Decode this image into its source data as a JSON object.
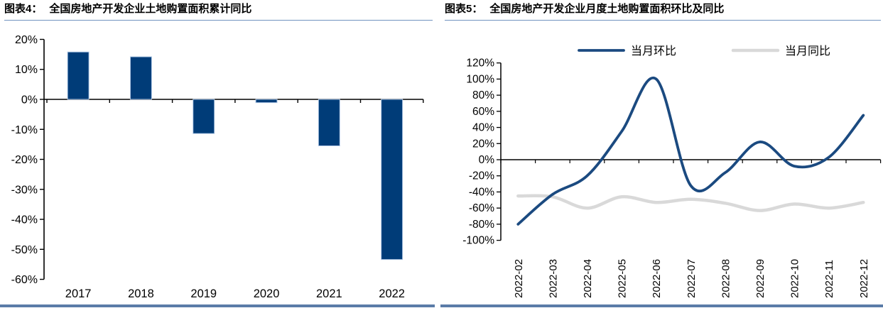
{
  "panels": [
    {
      "figure_label": "图表4：",
      "title": "全国房地产开发企业土地购置面积累计同比"
    },
    {
      "figure_label": "图表5：",
      "title": "全国房地产开发企业月度土地购置面积环比及同比"
    }
  ],
  "chart_data": [
    {
      "type": "bar",
      "title": "全国房地产开发企业土地购置面积累计同比",
      "categories": [
        "2017",
        "2018",
        "2019",
        "2020",
        "2021",
        "2022"
      ],
      "values": [
        15.8,
        14.2,
        -11.4,
        -1.1,
        -15.5,
        -53.4
      ],
      "unit": "%",
      "xlabel": "",
      "ylabel": "",
      "ylim": [
        -60,
        20
      ],
      "ytick_step": 10,
      "ytick_labels": [
        "20%",
        "10%",
        "0%",
        "-10%",
        "-20%",
        "-30%",
        "-40%",
        "-50%",
        "-60%"
      ],
      "grid": false,
      "bar_color": "#003c78",
      "bar_edge_color": "#b3c9e6",
      "axis_color": "#000000"
    },
    {
      "type": "line",
      "title": "全国房地产开发企业月度土地购置面积环比及同比",
      "x": [
        "2022-02",
        "2022-03",
        "2022-04",
        "2022-05",
        "2022-06",
        "2022-07",
        "2022-08",
        "2022-09",
        "2022-10",
        "2022-11",
        "2022-12"
      ],
      "series": [
        {
          "name": "当月环比",
          "color": "#1b4a80",
          "width": 3.8,
          "values": [
            -80,
            -43,
            -20,
            35,
            100,
            -32,
            -16,
            22,
            -8,
            3,
            55
          ]
        },
        {
          "name": "当月同比",
          "color": "#d9d9d9",
          "width": 4.5,
          "values": [
            -45,
            -46,
            -60,
            -46,
            -53,
            -49,
            -54,
            -63,
            -55,
            -60,
            -53
          ]
        }
      ],
      "unit": "%",
      "xlabel": "",
      "ylabel": "",
      "ylim": [
        -100,
        120
      ],
      "ytick_step": 20,
      "ytick_labels": [
        "120%",
        "100%",
        "80%",
        "60%",
        "40%",
        "20%",
        "0%",
        "-20%",
        "-40%",
        "-60%",
        "-80%",
        "-100%"
      ],
      "grid": false,
      "smooth": true,
      "legend_position": "top",
      "axis_color": "#000000"
    }
  ]
}
